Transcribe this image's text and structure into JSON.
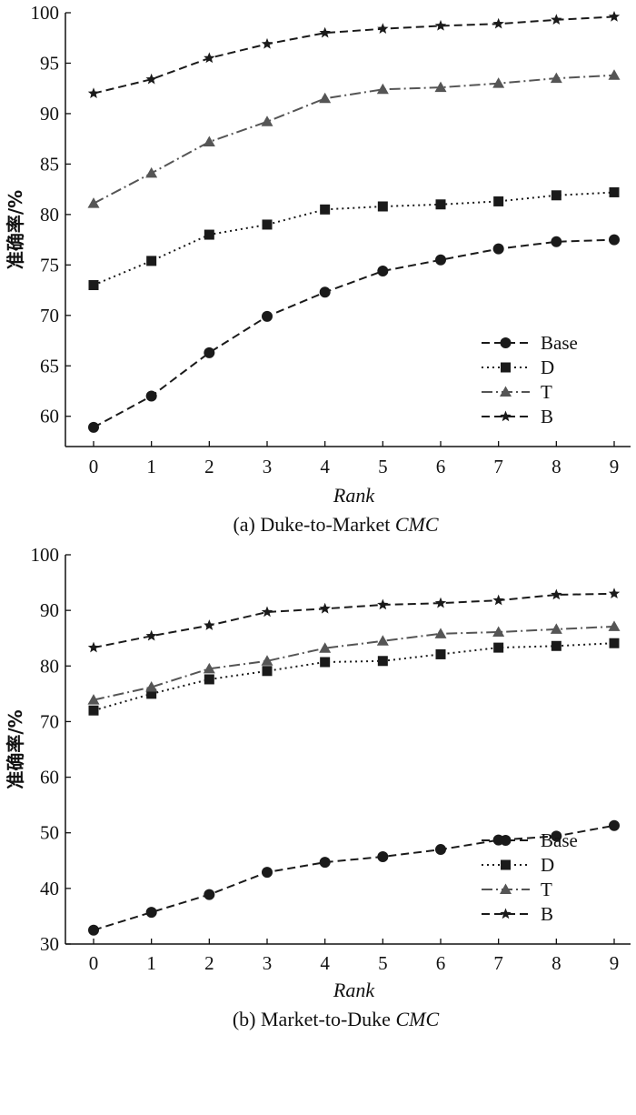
{
  "chart_data": [
    {
      "type": "line",
      "caption_prefix": "(a) Duke-to-Market",
      "caption_italic": "CMC",
      "xlabel": "Rank",
      "ylabel": "准确率/%",
      "categories": [
        "0",
        "1",
        "2",
        "3",
        "4",
        "5",
        "6",
        "7",
        "8",
        "9"
      ],
      "ylim": [
        57,
        100
      ],
      "yticks": [
        60,
        65,
        70,
        75,
        80,
        85,
        90,
        95,
        100
      ],
      "legend_position": "lower-right",
      "series": [
        {
          "name": "Base",
          "marker": "circle",
          "dash": "dashed",
          "values": [
            58.9,
            62.0,
            66.3,
            69.9,
            72.3,
            74.4,
            75.5,
            76.6,
            77.3,
            77.5
          ]
        },
        {
          "name": "D",
          "marker": "square",
          "dash": "dotted",
          "values": [
            73.0,
            75.4,
            78.0,
            79.0,
            80.5,
            80.8,
            81.0,
            81.3,
            81.9,
            82.2
          ]
        },
        {
          "name": "T",
          "marker": "triangle",
          "dash": "dashdot",
          "values": [
            81.1,
            84.1,
            87.2,
            89.2,
            91.5,
            92.4,
            92.6,
            93.0,
            93.5,
            93.8
          ]
        },
        {
          "name": "B",
          "marker": "star",
          "dash": "dashed",
          "values": [
            92.0,
            93.4,
            95.5,
            96.9,
            98.0,
            98.4,
            98.7,
            98.9,
            99.3,
            99.6
          ]
        }
      ]
    },
    {
      "type": "line",
      "caption_prefix": "(b) Market-to-Duke",
      "caption_italic": "CMC",
      "xlabel": "Rank",
      "ylabel": "准确率/%",
      "categories": [
        "0",
        "1",
        "2",
        "3",
        "4",
        "5",
        "6",
        "7",
        "8",
        "9"
      ],
      "ylim": [
        30,
        100
      ],
      "yticks": [
        30,
        40,
        50,
        60,
        70,
        80,
        90,
        100
      ],
      "legend_position": "lower-right",
      "series": [
        {
          "name": "Base",
          "marker": "circle",
          "dash": "dashed",
          "values": [
            32.5,
            35.7,
            38.9,
            42.9,
            44.7,
            45.7,
            47.0,
            48.7,
            49.4,
            51.3
          ]
        },
        {
          "name": "D",
          "marker": "square",
          "dash": "dotted",
          "values": [
            72.0,
            75.0,
            77.6,
            79.1,
            80.7,
            80.9,
            82.1,
            83.3,
            83.6,
            84.1
          ]
        },
        {
          "name": "T",
          "marker": "triangle",
          "dash": "dashdot",
          "values": [
            73.9,
            76.2,
            79.5,
            80.9,
            83.2,
            84.5,
            85.8,
            86.1,
            86.6,
            87.1
          ]
        },
        {
          "name": "B",
          "marker": "star",
          "dash": "dashed",
          "values": [
            83.3,
            85.4,
            87.3,
            89.7,
            90.3,
            91.0,
            91.3,
            91.8,
            92.8,
            93.0
          ]
        }
      ]
    }
  ]
}
